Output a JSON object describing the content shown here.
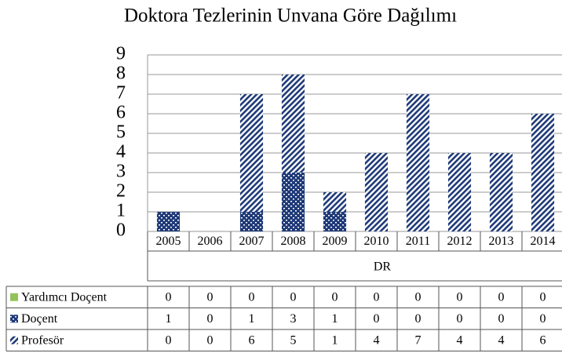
{
  "chart_data": {
    "type": "bar",
    "stacked": true,
    "title": "Doktora Tezlerinin Unvana Göre Dağılımı",
    "x_label": "DR",
    "categories": [
      "2005",
      "2006",
      "2007",
      "2008",
      "2009",
      "2010",
      "2011",
      "2012",
      "2013",
      "2014"
    ],
    "series": [
      {
        "name": "Yardımcı Doçent",
        "color": "#92c35a",
        "pattern": "solid",
        "values": [
          0,
          0,
          0,
          0,
          0,
          0,
          0,
          0,
          0,
          0
        ]
      },
      {
        "name": "Doçent",
        "color": "#1f3a78",
        "pattern": "dots",
        "values": [
          1,
          0,
          1,
          3,
          1,
          0,
          0,
          0,
          0,
          0
        ]
      },
      {
        "name": "Profesör",
        "color": "#1f3a78",
        "pattern": "stripes",
        "values": [
          0,
          0,
          6,
          5,
          1,
          4,
          7,
          4,
          4,
          6
        ]
      }
    ],
    "ylim": [
      0,
      9
    ],
    "yticks": [
      0,
      1,
      2,
      3,
      4,
      5,
      6,
      7,
      8,
      9
    ],
    "grid": true,
    "data_table": true
  }
}
